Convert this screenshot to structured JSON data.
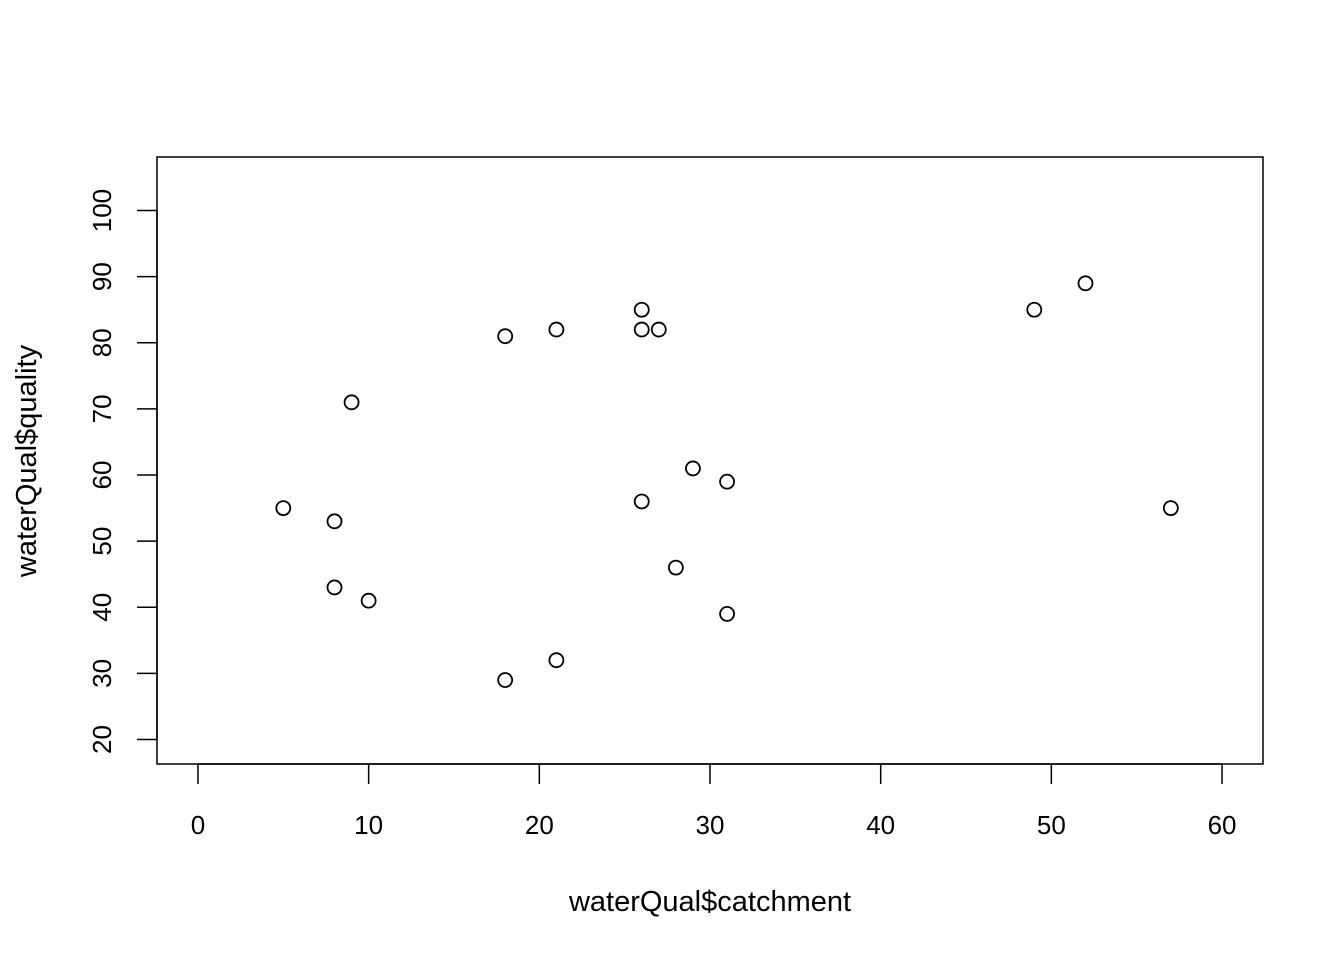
{
  "chart_data": {
    "type": "scatter",
    "title": "",
    "xlabel": "waterQual$catchment",
    "ylabel": "waterQual$quality",
    "xlim": [
      -2.4,
      62.4
    ],
    "ylim": [
      16.3,
      108.1
    ],
    "x_ticks": [
      0,
      10,
      20,
      30,
      40,
      50,
      60
    ],
    "y_ticks": [
      20,
      30,
      40,
      50,
      60,
      70,
      80,
      90,
      100
    ],
    "grid": false,
    "legend": "none",
    "marker": "open-circle",
    "colors": {
      "axis": "#000000",
      "marker": "#000000",
      "background": "#ffffff"
    },
    "points": [
      {
        "x": 5,
        "y": 55
      },
      {
        "x": 8,
        "y": 53
      },
      {
        "x": 8,
        "y": 43
      },
      {
        "x": 9,
        "y": 71
      },
      {
        "x": 10,
        "y": 41
      },
      {
        "x": 18,
        "y": 81
      },
      {
        "x": 18,
        "y": 29
      },
      {
        "x": 21,
        "y": 82
      },
      {
        "x": 21,
        "y": 32
      },
      {
        "x": 26,
        "y": 85
      },
      {
        "x": 26,
        "y": 82
      },
      {
        "x": 26,
        "y": 56
      },
      {
        "x": 27,
        "y": 82
      },
      {
        "x": 28,
        "y": 46
      },
      {
        "x": 29,
        "y": 61
      },
      {
        "x": 31,
        "y": 59
      },
      {
        "x": 31,
        "y": 39
      },
      {
        "x": 49,
        "y": 85
      },
      {
        "x": 52,
        "y": 89
      },
      {
        "x": 57,
        "y": 55
      }
    ]
  }
}
